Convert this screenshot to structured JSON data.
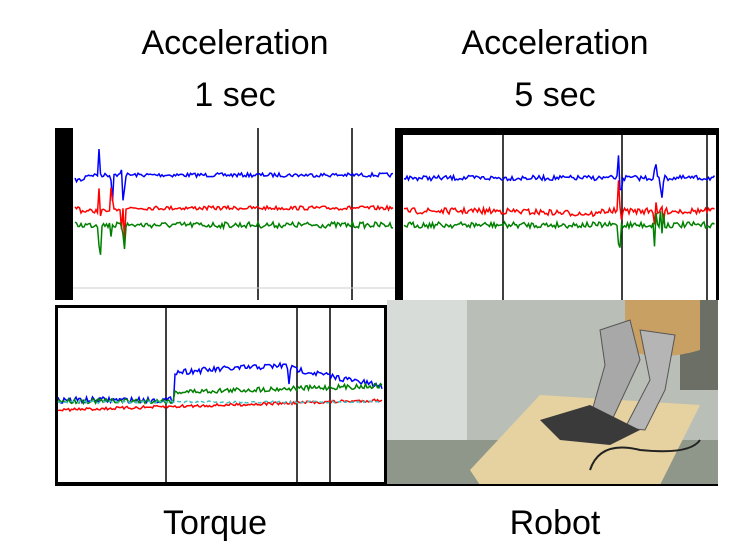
{
  "panels": [
    {
      "title": "Acceleration",
      "subtitle": "1 sec"
    },
    {
      "title": "Acceleration",
      "subtitle": "5 sec"
    },
    {
      "title": "Torque"
    },
    {
      "title": "Robot"
    }
  ]
}
